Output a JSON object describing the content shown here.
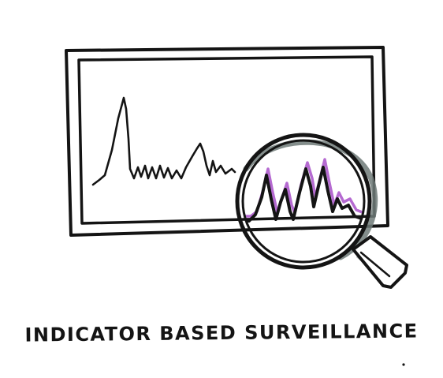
{
  "caption": "INDICATOR BASED SURVEILLANCE",
  "colors": {
    "ink": "#141414",
    "highlight": "#b56ad1",
    "shadow": "#6f7a78",
    "background": "#ffffff"
  },
  "icons": {
    "monitor": "monitor-frame-icon",
    "signal": "signal-waveform-icon",
    "magnifier": "magnifying-glass-icon"
  }
}
